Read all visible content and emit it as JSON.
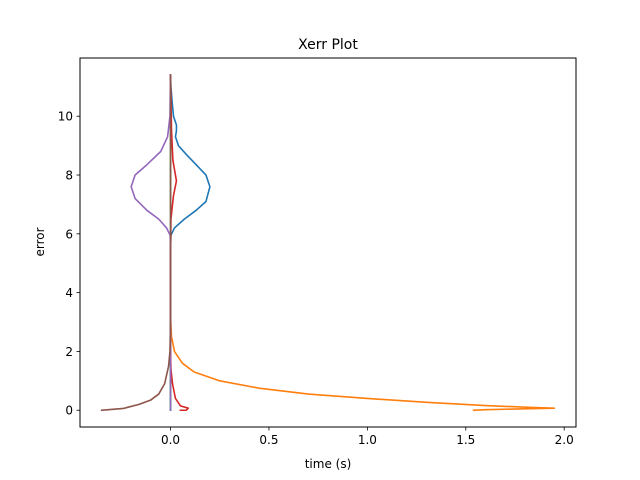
{
  "chart_data": {
    "type": "line",
    "title": "Xerr Plot",
    "xlabel": "time (s)",
    "ylabel": "error",
    "xlim": [
      -0.46,
      2.06
    ],
    "ylim": [
      -0.57,
      11.98
    ],
    "xticks": [
      0.0,
      0.5,
      1.0,
      1.5,
      2.0
    ],
    "xtick_labels": [
      "0.0",
      "0.5",
      "1.0",
      "1.5",
      "2.0"
    ],
    "yticks": [
      0,
      2,
      4,
      6,
      8,
      10
    ],
    "ytick_labels": [
      "0",
      "2",
      "4",
      "6",
      "8",
      "10"
    ],
    "grid": false,
    "legend": null,
    "series": [
      {
        "color": "#1f77b4",
        "points": [
          [
            0.0,
            11.4
          ],
          [
            0.002,
            11.0
          ],
          [
            0.008,
            10.5
          ],
          [
            0.015,
            10.0
          ],
          [
            0.03,
            9.7
          ],
          [
            0.03,
            9.5
          ],
          [
            0.025,
            9.3
          ],
          [
            0.04,
            9.0
          ],
          [
            0.08,
            8.7
          ],
          [
            0.13,
            8.35
          ],
          [
            0.18,
            8.0
          ],
          [
            0.2,
            7.6
          ],
          [
            0.18,
            7.1
          ],
          [
            0.13,
            6.8
          ],
          [
            0.07,
            6.5
          ],
          [
            0.02,
            6.2
          ],
          [
            0.002,
            5.95
          ],
          [
            0.0,
            5.5
          ],
          [
            0.0,
            2.0
          ],
          [
            0.0,
            0.0
          ]
        ]
      },
      {
        "color": "#ff7f0e",
        "points": [
          [
            0.0,
            3.2
          ],
          [
            0.005,
            2.5
          ],
          [
            0.02,
            2.0
          ],
          [
            0.06,
            1.6
          ],
          [
            0.12,
            1.3
          ],
          [
            0.25,
            1.0
          ],
          [
            0.45,
            0.75
          ],
          [
            0.7,
            0.55
          ],
          [
            1.0,
            0.4
          ],
          [
            1.3,
            0.27
          ],
          [
            1.6,
            0.16
          ],
          [
            1.85,
            0.09
          ],
          [
            1.95,
            0.07
          ],
          [
            1.8,
            0.05
          ],
          [
            1.6,
            0.02
          ],
          [
            1.54,
            0.0
          ]
        ]
      },
      {
        "color": "#2ca02c",
        "points": [
          [
            0.0,
            11.4
          ],
          [
            0.0,
            0.0
          ]
        ]
      },
      {
        "color": "#d62728",
        "points": [
          [
            0.0,
            11.4
          ],
          [
            0.005,
            9.5
          ],
          [
            0.012,
            8.5
          ],
          [
            0.03,
            7.8
          ],
          [
            0.015,
            7.3
          ],
          [
            0.002,
            6.5
          ],
          [
            0.0,
            5.0
          ],
          [
            0.0,
            2.0
          ],
          [
            0.002,
            1.4
          ],
          [
            0.01,
            0.9
          ],
          [
            0.025,
            0.4
          ],
          [
            0.05,
            0.15
          ],
          [
            0.09,
            0.07
          ],
          [
            0.08,
            0.0
          ],
          [
            0.05,
            0.0
          ]
        ]
      },
      {
        "color": "#9467bd",
        "points": [
          [
            0.0,
            11.4
          ],
          [
            -0.003,
            10.0
          ],
          [
            -0.015,
            9.3
          ],
          [
            -0.05,
            8.8
          ],
          [
            -0.12,
            8.35
          ],
          [
            -0.18,
            8.0
          ],
          [
            -0.2,
            7.6
          ],
          [
            -0.18,
            7.2
          ],
          [
            -0.12,
            6.8
          ],
          [
            -0.06,
            6.5
          ],
          [
            -0.02,
            6.2
          ],
          [
            -0.002,
            5.95
          ],
          [
            0.0,
            5.5
          ],
          [
            0.0,
            0.0
          ]
        ]
      },
      {
        "color": "#8c564b",
        "points": [
          [
            0.0,
            11.4
          ],
          [
            0.0,
            9.0
          ],
          [
            0.0,
            6.0
          ],
          [
            0.0,
            3.0
          ],
          [
            -0.003,
            2.0
          ],
          [
            -0.01,
            1.5
          ],
          [
            -0.03,
            0.9
          ],
          [
            -0.06,
            0.55
          ],
          [
            -0.1,
            0.35
          ],
          [
            -0.16,
            0.2
          ],
          [
            -0.24,
            0.06
          ],
          [
            -0.35,
            0.0
          ]
        ]
      }
    ]
  }
}
